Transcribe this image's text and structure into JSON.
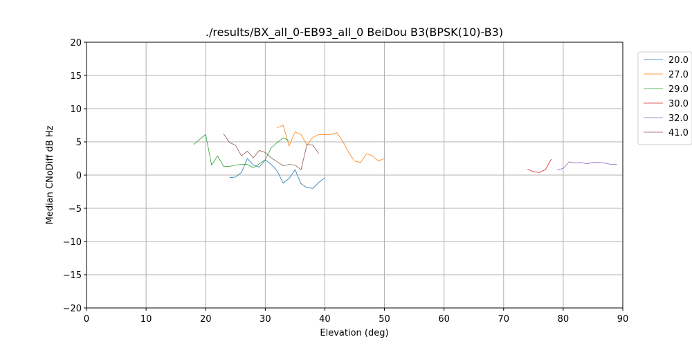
{
  "chart_data": {
    "type": "line",
    "title": "./results/BX_all_0-EB93_all_0 BeiDou B3(BPSK(10)-B3)",
    "xlabel": "Elevation (deg)",
    "ylabel": "Median CNoDiff dB Hz",
    "xlim": [
      0,
      90
    ],
    "ylim": [
      -20,
      20
    ],
    "xticks": [
      0,
      10,
      20,
      30,
      40,
      50,
      60,
      70,
      80,
      90
    ],
    "yticks": [
      -20,
      -15,
      -10,
      -5,
      0,
      5,
      10,
      15,
      20
    ],
    "xtick_labels": [
      "0",
      "10",
      "20",
      "30",
      "40",
      "50",
      "60",
      "70",
      "80",
      "90"
    ],
    "ytick_labels": [
      "−20",
      "−15",
      "−10",
      "−5",
      "0",
      "5",
      "10",
      "15",
      "20"
    ],
    "grid": true,
    "legend_position": "outside-right",
    "series": [
      {
        "name": "20.0",
        "color": "#1f77b4",
        "x": [
          24,
          25,
          26,
          27,
          28,
          29,
          30,
          31,
          32,
          33,
          34,
          35,
          36,
          37,
          38,
          39,
          40
        ],
        "y": [
          -0.4,
          -0.3,
          0.4,
          2.5,
          1.5,
          1.2,
          2.3,
          1.6,
          0.6,
          -1.2,
          -0.5,
          0.8,
          -1.3,
          -1.9,
          -2.0,
          -1.1,
          -0.4
        ]
      },
      {
        "name": "27.0",
        "color": "#ff7f0e",
        "x": [
          32,
          33,
          34,
          35,
          36,
          37,
          38,
          39,
          40,
          41,
          42,
          43,
          44,
          45,
          46,
          47,
          48,
          49,
          50
        ],
        "y": [
          7.1,
          7.5,
          4.4,
          6.5,
          6.1,
          4.5,
          5.7,
          6.1,
          6.1,
          6.1,
          6.4,
          5.1,
          3.4,
          2.1,
          1.9,
          3.2,
          2.9,
          2.1,
          2.5
        ]
      },
      {
        "name": "29.0",
        "color": "#2ca02c",
        "x": [
          18,
          19,
          20,
          21,
          22,
          23,
          24,
          25,
          26,
          27,
          28,
          29,
          30,
          31,
          32,
          33,
          34
        ],
        "y": [
          4.6,
          5.4,
          6.1,
          1.5,
          2.9,
          1.3,
          1.3,
          1.5,
          1.6,
          1.6,
          1.1,
          1.7,
          2.3,
          4.1,
          4.9,
          5.6,
          5.2
        ]
      },
      {
        "name": "30.0",
        "color": "#d62728",
        "x": [
          74,
          75,
          76,
          77,
          78
        ],
        "y": [
          0.9,
          0.5,
          0.4,
          0.8,
          2.4
        ]
      },
      {
        "name": "32.0",
        "color": "#9467bd",
        "x": [
          79,
          80,
          81,
          82,
          83,
          84,
          85,
          86,
          87,
          88,
          89
        ],
        "y": [
          0.8,
          1.0,
          2.0,
          1.8,
          1.9,
          1.7,
          1.9,
          1.9,
          1.8,
          1.6,
          1.6
        ]
      },
      {
        "name": "41.0",
        "color": "#8c564b",
        "x": [
          23,
          24,
          25,
          26,
          27,
          28,
          29,
          30,
          31,
          32,
          33,
          34,
          35,
          36,
          37,
          38,
          39
        ],
        "y": [
          6.2,
          4.9,
          4.5,
          2.9,
          3.6,
          2.6,
          3.7,
          3.4,
          2.6,
          2.0,
          1.4,
          1.6,
          1.5,
          0.8,
          4.6,
          4.5,
          3.2
        ]
      }
    ]
  }
}
